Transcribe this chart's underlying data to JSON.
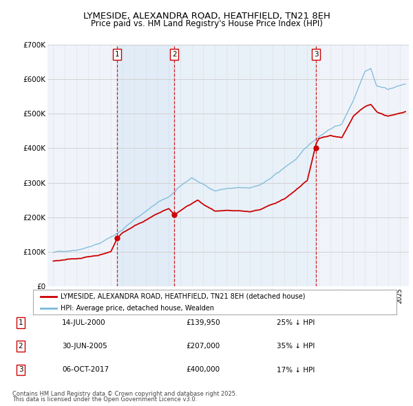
{
  "title": "LYMESIDE, ALEXANDRA ROAD, HEATHFIELD, TN21 8EH",
  "subtitle": "Price paid vs. HM Land Registry's House Price Index (HPI)",
  "legend_label_red": "LYMESIDE, ALEXANDRA ROAD, HEATHFIELD, TN21 8EH (detached house)",
  "legend_label_blue": "HPI: Average price, detached house, Wealden",
  "footer1": "Contains HM Land Registry data © Crown copyright and database right 2025.",
  "footer2": "This data is licensed under the Open Government Licence v3.0.",
  "sales": [
    {
      "num": 1,
      "date": "14-JUL-2000",
      "price": 139950,
      "pct": "25%",
      "dir": "↓"
    },
    {
      "num": 2,
      "date": "30-JUN-2005",
      "price": 207000,
      "pct": "35%",
      "dir": "↓"
    },
    {
      "num": 3,
      "date": "06-OCT-2017",
      "price": 400000,
      "pct": "17%",
      "dir": "↓"
    }
  ],
  "sale_years": [
    2000.54,
    2005.49,
    2017.76
  ],
  "sale_prices": [
    139950,
    207000,
    400000
  ],
  "vline_color": "#cc0000",
  "sale_marker_color": "#cc0000",
  "hpi_color": "#7ab8d8",
  "price_color": "#cc0000",
  "background_color": "#ffffff",
  "plot_bg_color": "#f0f4fa",
  "ylim": [
    0,
    700000
  ],
  "xlim_start": 1994.5,
  "xlim_end": 2025.8
}
